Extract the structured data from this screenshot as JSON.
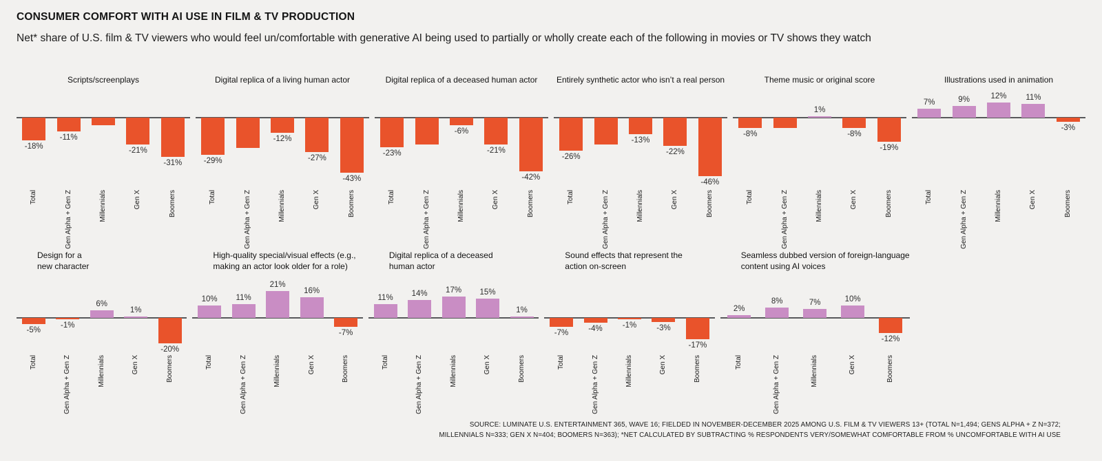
{
  "page": {
    "title": "CONSUMER COMFORT WITH AI USE IN FILM & TV PRODUCTION",
    "subtitle": "Net* share of U.S. film & TV viewers who would feel un/comfortable with generative AI being used to partially or wholly create each of the following in movies or TV shows they watch",
    "source_line1": "SOURCE: LUMINATE U.S. ENTERTAINMENT 365, WAVE 16; FIELDED IN NOVEMBER-DECEMBER 2025 AMONG U.S. FILM & TV VIEWERS 13+ (TOTAL N=1,494; GENS ALPHA + Z N=372;",
    "source_line2": "MILLENNIALS N=333; GEN X N=404; BOOMERS N=363); *NET CALCULATED BY SUBTRACTING % RESPONDENTS VERY/SOMEWHAT COMFORTABLE FROM % UNCOMFORTABLE WITH AI USE"
  },
  "colors": {
    "positive_bar": "#c98dc4",
    "negative_bar": "#e9532b",
    "background": "#f2f1ef",
    "axis_line": "#58585a"
  },
  "chart_data": {
    "type": "bar",
    "unit": "% net share",
    "categories": [
      "Total",
      "Gen Alpha + Gen Z",
      "Millennials",
      "Gen X",
      "Boomers"
    ],
    "grid": false,
    "legend": false,
    "row1_ylim": [
      -50,
      15
    ],
    "row2_ylim": [
      -25,
      25
    ],
    "charts": [
      {
        "row": 1,
        "title_lines": [
          "Scripts/screenplays"
        ],
        "values": [
          -18,
          -11,
          -6,
          -21,
          -31
        ],
        "labels": [
          "-18%",
          "-11%",
          "",
          "-21%",
          "-31%"
        ]
      },
      {
        "row": 1,
        "title_lines": [
          "Digital replica of a living human actor"
        ],
        "values": [
          -29,
          -24,
          -12,
          -27,
          -43
        ],
        "labels": [
          "-29%",
          "",
          "-12%",
          "-27%",
          "-43%"
        ]
      },
      {
        "row": 1,
        "title_lines": [
          "Digital replica of a deceased human actor"
        ],
        "values": [
          -23,
          -21,
          -6,
          -21,
          -42
        ],
        "labels": [
          "-23%",
          "",
          "-6%",
          "-21%",
          "-42%"
        ]
      },
      {
        "row": 1,
        "title_lines": [
          "Entirely synthetic actor who isn’t a real person"
        ],
        "values": [
          -26,
          -21,
          -13,
          -22,
          -46
        ],
        "labels": [
          "-26%",
          "",
          "-13%",
          "-22%",
          "-46%"
        ]
      },
      {
        "row": 1,
        "title_lines": [
          "Theme music or original score"
        ],
        "values": [
          -8,
          -8,
          1,
          -8,
          -19
        ],
        "labels": [
          "-8%",
          "",
          "1%",
          "-8%",
          "-19%"
        ]
      },
      {
        "row": 1,
        "title_lines": [
          "Illustrations used in animation"
        ],
        "values": [
          7,
          9,
          12,
          11,
          -3
        ],
        "labels": [
          "7%",
          "9%",
          "12%",
          "11%",
          "-3%"
        ]
      },
      {
        "row": 2,
        "title_lines": [
          "Design for a",
          "new character"
        ],
        "values": [
          -5,
          -1,
          6,
          1,
          -20
        ],
        "labels": [
          "-5%",
          "-1%",
          "6%",
          "1%",
          "-20%"
        ]
      },
      {
        "row": 2,
        "title_lines": [
          "High-quality special/visual effects (e.g.,",
          "making an actor look older for a role)"
        ],
        "values": [
          10,
          11,
          21,
          16,
          -7
        ],
        "labels": [
          "10%",
          "11%",
          "21%",
          "16%",
          "-7%"
        ]
      },
      {
        "row": 2,
        "title_lines": [
          "Digital replica of a deceased",
          "human actor"
        ],
        "values": [
          11,
          14,
          17,
          15,
          1
        ],
        "labels": [
          "11%",
          "14%",
          "17%",
          "15%",
          "1%"
        ]
      },
      {
        "row": 2,
        "title_lines": [
          "Sound effects that represent the",
          "action on-screen"
        ],
        "values": [
          -7,
          -4,
          -1,
          -3,
          -17
        ],
        "labels": [
          "-7%",
          "-4%",
          "-1%",
          "-3%",
          "-17%"
        ]
      },
      {
        "row": 2,
        "title_lines": [
          "Seamless dubbed version of foreign-language",
          "content using AI voices"
        ],
        "values": [
          2,
          8,
          7,
          10,
          -12
        ],
        "labels": [
          "2%",
          "8%",
          "7%",
          "10%",
          "-12%"
        ]
      }
    ]
  }
}
